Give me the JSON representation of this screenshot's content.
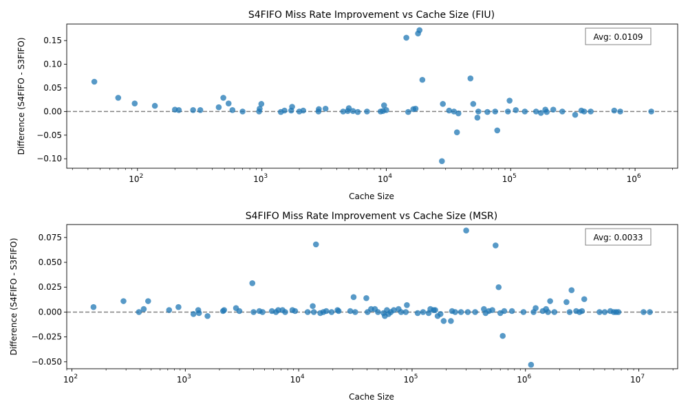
{
  "style": {
    "marker_color": "#1f77b4",
    "marker_opacity": 0.75,
    "zero_line_color": "#808080",
    "axis_color": "#000000",
    "background": "#ffffff"
  },
  "chart_data": [
    {
      "type": "scatter",
      "title": "S4FIFO Miss Rate Improvement vs Cache Size (FIU)",
      "xlabel": "Cache Size",
      "ylabel": "Difference (S4FIFO - S3FIFO)",
      "xscale": "log",
      "xlim": [
        27,
        2200000
      ],
      "ylim": [
        -0.12,
        0.185
      ],
      "xticks": [
        {
          "value": 100,
          "label": "10",
          "exp": "2"
        },
        {
          "value": 1000,
          "label": "10",
          "exp": "3"
        },
        {
          "value": 10000,
          "label": "10",
          "exp": "4"
        },
        {
          "value": 100000,
          "label": "10",
          "exp": "5"
        },
        {
          "value": 1000000,
          "label": "10",
          "exp": "6"
        }
      ],
      "yticks": [
        {
          "value": -0.1,
          "label": "−0.10"
        },
        {
          "value": -0.05,
          "label": "−0.05"
        },
        {
          "value": 0.0,
          "label": "0.00"
        },
        {
          "value": 0.05,
          "label": "0.05"
        },
        {
          "value": 0.1,
          "label": "0.10"
        },
        {
          "value": 0.15,
          "label": "0.15"
        }
      ],
      "annotation": "Avg: 0.0109",
      "annotation_position": "top-right",
      "reference_line": {
        "y": 0,
        "style": "dashed"
      },
      "grid": false,
      "points": [
        {
          "x": 45,
          "y": 0.063
        },
        {
          "x": 70,
          "y": 0.029
        },
        {
          "x": 95,
          "y": 0.017
        },
        {
          "x": 138,
          "y": 0.012
        },
        {
          "x": 200,
          "y": 0.004
        },
        {
          "x": 215,
          "y": 0.003
        },
        {
          "x": 280,
          "y": 0.003
        },
        {
          "x": 320,
          "y": 0.003
        },
        {
          "x": 450,
          "y": 0.009
        },
        {
          "x": 490,
          "y": 0.029
        },
        {
          "x": 540,
          "y": 0.017
        },
        {
          "x": 580,
          "y": 0.003
        },
        {
          "x": 700,
          "y": 0.0
        },
        {
          "x": 950,
          "y": 0.0
        },
        {
          "x": 960,
          "y": 0.006
        },
        {
          "x": 990,
          "y": 0.016
        },
        {
          "x": 1420,
          "y": -0.001
        },
        {
          "x": 1520,
          "y": 0.002
        },
        {
          "x": 1720,
          "y": 0.002
        },
        {
          "x": 1750,
          "y": 0.01
        },
        {
          "x": 2000,
          "y": 0.0
        },
        {
          "x": 2150,
          "y": 0.002
        },
        {
          "x": 2850,
          "y": 0.0
        },
        {
          "x": 2870,
          "y": 0.005
        },
        {
          "x": 3250,
          "y": 0.006
        },
        {
          "x": 4500,
          "y": 0.0
        },
        {
          "x": 4900,
          "y": 0.001
        },
        {
          "x": 5000,
          "y": 0.007
        },
        {
          "x": 5400,
          "y": 0.001
        },
        {
          "x": 5900,
          "y": -0.001
        },
        {
          "x": 7000,
          "y": 0.0
        },
        {
          "x": 9000,
          "y": 0.0
        },
        {
          "x": 9400,
          "y": 0.001
        },
        {
          "x": 9600,
          "y": 0.013
        },
        {
          "x": 10000,
          "y": 0.003
        },
        {
          "x": 14500,
          "y": 0.156
        },
        {
          "x": 15000,
          "y": -0.001
        },
        {
          "x": 16500,
          "y": 0.005
        },
        {
          "x": 17200,
          "y": 0.006
        },
        {
          "x": 18000,
          "y": 0.165
        },
        {
          "x": 18500,
          "y": 0.172
        },
        {
          "x": 19500,
          "y": 0.067
        },
        {
          "x": 28000,
          "y": -0.105
        },
        {
          "x": 28500,
          "y": 0.016
        },
        {
          "x": 32000,
          "y": 0.002
        },
        {
          "x": 35000,
          "y": 0.0
        },
        {
          "x": 37000,
          "y": -0.044
        },
        {
          "x": 38000,
          "y": -0.004
        },
        {
          "x": 47500,
          "y": 0.07
        },
        {
          "x": 50000,
          "y": 0.016
        },
        {
          "x": 54000,
          "y": -0.013
        },
        {
          "x": 55000,
          "y": 0.0
        },
        {
          "x": 65000,
          "y": -0.001
        },
        {
          "x": 75000,
          "y": 0.0
        },
        {
          "x": 78000,
          "y": -0.04
        },
        {
          "x": 95000,
          "y": 0.0
        },
        {
          "x": 98000,
          "y": 0.023
        },
        {
          "x": 110000,
          "y": 0.003
        },
        {
          "x": 130000,
          "y": 0.0
        },
        {
          "x": 160000,
          "y": 0.0
        },
        {
          "x": 175000,
          "y": -0.003
        },
        {
          "x": 190000,
          "y": 0.004
        },
        {
          "x": 195000,
          "y": -0.001
        },
        {
          "x": 220000,
          "y": 0.004
        },
        {
          "x": 260000,
          "y": 0.0
        },
        {
          "x": 330000,
          "y": -0.007
        },
        {
          "x": 370000,
          "y": 0.002
        },
        {
          "x": 390000,
          "y": 0.0
        },
        {
          "x": 440000,
          "y": 0.0
        },
        {
          "x": 680000,
          "y": 0.002
        },
        {
          "x": 760000,
          "y": 0.0
        },
        {
          "x": 1350000,
          "y": 0.0
        }
      ]
    },
    {
      "type": "scatter",
      "title": "S4FIFO Miss Rate Improvement vs Cache Size (MSR)",
      "xlabel": "Cache Size",
      "ylabel": "Difference (S4FIFO - S3FIFO)",
      "xscale": "log",
      "xlim": [
        90,
        22000000
      ],
      "ylim": [
        -0.057,
        0.088
      ],
      "xticks": [
        {
          "value": 100,
          "label": "10",
          "exp": "2"
        },
        {
          "value": 1000,
          "label": "10",
          "exp": "3"
        },
        {
          "value": 10000,
          "label": "10",
          "exp": "4"
        },
        {
          "value": 100000,
          "label": "10",
          "exp": "5"
        },
        {
          "value": 1000000,
          "label": "10",
          "exp": "6"
        },
        {
          "value": 10000000,
          "label": "10",
          "exp": "7"
        }
      ],
      "yticks": [
        {
          "value": -0.05,
          "label": "−0.050"
        },
        {
          "value": -0.025,
          "label": "−0.025"
        },
        {
          "value": 0.0,
          "label": "0.000"
        },
        {
          "value": 0.025,
          "label": "0.025"
        },
        {
          "value": 0.05,
          "label": "0.050"
        },
        {
          "value": 0.075,
          "label": "0.075"
        }
      ],
      "annotation": "Avg: 0.0033",
      "annotation_position": "top-right",
      "reference_line": {
        "y": 0,
        "style": "dashed"
      },
      "grid": false,
      "points": [
        {
          "x": 155,
          "y": 0.005
        },
        {
          "x": 285,
          "y": 0.011
        },
        {
          "x": 390,
          "y": 0.0
        },
        {
          "x": 430,
          "y": 0.003
        },
        {
          "x": 470,
          "y": 0.011
        },
        {
          "x": 720,
          "y": 0.002
        },
        {
          "x": 870,
          "y": 0.005
        },
        {
          "x": 1180,
          "y": -0.002
        },
        {
          "x": 1300,
          "y": 0.002
        },
        {
          "x": 1320,
          "y": -0.001
        },
        {
          "x": 1570,
          "y": -0.004
        },
        {
          "x": 2150,
          "y": 0.001
        },
        {
          "x": 2200,
          "y": 0.002
        },
        {
          "x": 2800,
          "y": 0.004
        },
        {
          "x": 3000,
          "y": 0.001
        },
        {
          "x": 3900,
          "y": 0.029
        },
        {
          "x": 4000,
          "y": 0.0
        },
        {
          "x": 4500,
          "y": 0.001
        },
        {
          "x": 4800,
          "y": 0.0
        },
        {
          "x": 5800,
          "y": 0.001
        },
        {
          "x": 6300,
          "y": 0.0
        },
        {
          "x": 6600,
          "y": 0.002
        },
        {
          "x": 7200,
          "y": 0.002
        },
        {
          "x": 7600,
          "y": 0.0
        },
        {
          "x": 8800,
          "y": 0.002
        },
        {
          "x": 9300,
          "y": 0.001
        },
        {
          "x": 12000,
          "y": 0.0
        },
        {
          "x": 13300,
          "y": 0.006
        },
        {
          "x": 13600,
          "y": 0.0
        },
        {
          "x": 14200,
          "y": 0.068
        },
        {
          "x": 15500,
          "y": -0.001
        },
        {
          "x": 16500,
          "y": 0.0
        },
        {
          "x": 17500,
          "y": 0.001
        },
        {
          "x": 19500,
          "y": 0.0
        },
        {
          "x": 22000,
          "y": 0.002
        },
        {
          "x": 22500,
          "y": 0.001
        },
        {
          "x": 28500,
          "y": 0.001
        },
        {
          "x": 30500,
          "y": 0.015
        },
        {
          "x": 31500,
          "y": 0.0
        },
        {
          "x": 39500,
          "y": 0.014
        },
        {
          "x": 40500,
          "y": 0.0
        },
        {
          "x": 43500,
          "y": 0.003
        },
        {
          "x": 47000,
          "y": 0.003
        },
        {
          "x": 50000,
          "y": 0.0
        },
        {
          "x": 56000,
          "y": -0.001
        },
        {
          "x": 57500,
          "y": -0.004
        },
        {
          "x": 60000,
          "y": 0.002
        },
        {
          "x": 62000,
          "y": -0.002
        },
        {
          "x": 65000,
          "y": 0.0
        },
        {
          "x": 69000,
          "y": 0.002
        },
        {
          "x": 76000,
          "y": 0.003
        },
        {
          "x": 80000,
          "y": 0.0
        },
        {
          "x": 88000,
          "y": 0.0
        },
        {
          "x": 90000,
          "y": 0.007
        },
        {
          "x": 112000,
          "y": -0.001
        },
        {
          "x": 125000,
          "y": 0.0
        },
        {
          "x": 140000,
          "y": -0.001
        },
        {
          "x": 145000,
          "y": 0.003
        },
        {
          "x": 155000,
          "y": 0.002
        },
        {
          "x": 160000,
          "y": 0.002
        },
        {
          "x": 168000,
          "y": -0.004
        },
        {
          "x": 178000,
          "y": -0.002
        },
        {
          "x": 190000,
          "y": -0.009
        },
        {
          "x": 220000,
          "y": -0.009
        },
        {
          "x": 225000,
          "y": 0.001
        },
        {
          "x": 240000,
          "y": 0.0
        },
        {
          "x": 270000,
          "y": 0.0
        },
        {
          "x": 300000,
          "y": 0.082
        },
        {
          "x": 310000,
          "y": 0.0
        },
        {
          "x": 360000,
          "y": 0.0
        },
        {
          "x": 430000,
          "y": 0.003
        },
        {
          "x": 445000,
          "y": -0.001
        },
        {
          "x": 475000,
          "y": 0.001
        },
        {
          "x": 510000,
          "y": 0.002
        },
        {
          "x": 545000,
          "y": 0.067
        },
        {
          "x": 580000,
          "y": 0.025
        },
        {
          "x": 600000,
          "y": -0.001
        },
        {
          "x": 630000,
          "y": -0.024
        },
        {
          "x": 650000,
          "y": 0.001
        },
        {
          "x": 760000,
          "y": 0.001
        },
        {
          "x": 960000,
          "y": 0.0
        },
        {
          "x": 1120000,
          "y": -0.053
        },
        {
          "x": 1180000,
          "y": 0.0
        },
        {
          "x": 1230000,
          "y": 0.004
        },
        {
          "x": 1420000,
          "y": 0.001
        },
        {
          "x": 1520000,
          "y": 0.003
        },
        {
          "x": 1580000,
          "y": 0.0
        },
        {
          "x": 1650000,
          "y": 0.011
        },
        {
          "x": 1800000,
          "y": 0.0
        },
        {
          "x": 2300000,
          "y": 0.01
        },
        {
          "x": 2450000,
          "y": 0.0
        },
        {
          "x": 2550000,
          "y": 0.022
        },
        {
          "x": 2800000,
          "y": 0.001
        },
        {
          "x": 3000000,
          "y": 0.0
        },
        {
          "x": 3150000,
          "y": 0.001
        },
        {
          "x": 3300000,
          "y": 0.013
        },
        {
          "x": 4500000,
          "y": 0.0
        },
        {
          "x": 5000000,
          "y": 0.0
        },
        {
          "x": 5600000,
          "y": 0.001
        },
        {
          "x": 6000000,
          "y": 0.0
        },
        {
          "x": 6300000,
          "y": 0.0
        },
        {
          "x": 6600000,
          "y": 0.0
        },
        {
          "x": 11000000,
          "y": 0.0
        },
        {
          "x": 12500000,
          "y": 0.0
        }
      ]
    }
  ]
}
